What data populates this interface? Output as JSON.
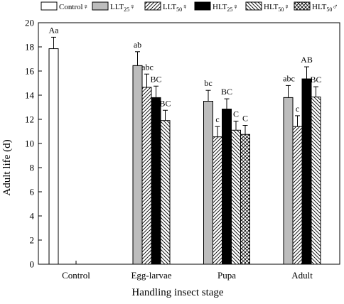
{
  "chart_data": {
    "type": "bar",
    "title": "",
    "xlabel": "Handling insect stage",
    "ylabel": "Adult life (d)",
    "ylim": [
      0,
      20
    ],
    "yticks": [
      0,
      2,
      4,
      6,
      8,
      10,
      12,
      14,
      16,
      18,
      20
    ],
    "categories": [
      "Control",
      "Egg-larvae",
      "Pupa",
      "Adult"
    ],
    "legend_position": "top",
    "series": [
      {
        "name": "Control♀",
        "label_main": "Control",
        "label_sub": "",
        "label_sym": "♀",
        "pattern": "white",
        "values": [
          17.85,
          null,
          null,
          null
        ],
        "errors": [
          0.95,
          null,
          null,
          null
        ],
        "letters": [
          "Aa",
          "",
          "",
          ""
        ]
      },
      {
        "name": "LLT25♀",
        "label_main": "LLT",
        "label_sub": "25",
        "label_sym": "♀",
        "pattern": "gray",
        "values": [
          null,
          16.45,
          13.5,
          13.8
        ],
        "errors": [
          null,
          1.15,
          0.9,
          1.0
        ],
        "letters": [
          "",
          "ab",
          "bc",
          "abc"
        ]
      },
      {
        "name": "LLT50♀",
        "label_main": "LLT",
        "label_sub": "50",
        "label_sym": "♀",
        "pattern": "hatch-right",
        "values": [
          null,
          14.65,
          10.55,
          11.4
        ],
        "errors": [
          null,
          1.1,
          0.85,
          0.9
        ],
        "letters": [
          "",
          "abc",
          "c",
          "c"
        ]
      },
      {
        "name": "HLT25♀",
        "label_main": "HLT",
        "label_sub": "25",
        "label_sym": "♀",
        "pattern": "black",
        "values": [
          null,
          13.8,
          12.85,
          15.35
        ],
        "errors": [
          null,
          0.95,
          0.85,
          1.0
        ],
        "letters": [
          "",
          "BC",
          "BC",
          "AB"
        ]
      },
      {
        "name": "HLT50♀",
        "label_main": "HLT",
        "label_sub": "50",
        "label_sym": "♀",
        "pattern": "hatch-left",
        "values": [
          null,
          11.9,
          11.1,
          13.85
        ],
        "errors": [
          null,
          0.85,
          0.75,
          0.85
        ],
        "letters": [
          "",
          "BC",
          "C",
          "BC"
        ]
      },
      {
        "name": "HLT50♂",
        "label_main": "HLT",
        "label_sub": "50",
        "label_sym": "♂",
        "pattern": "crosshatch",
        "values": [
          null,
          null,
          10.75,
          null
        ],
        "errors": [
          null,
          null,
          0.75,
          null
        ],
        "letters": [
          "",
          "",
          "C",
          ""
        ]
      }
    ]
  }
}
